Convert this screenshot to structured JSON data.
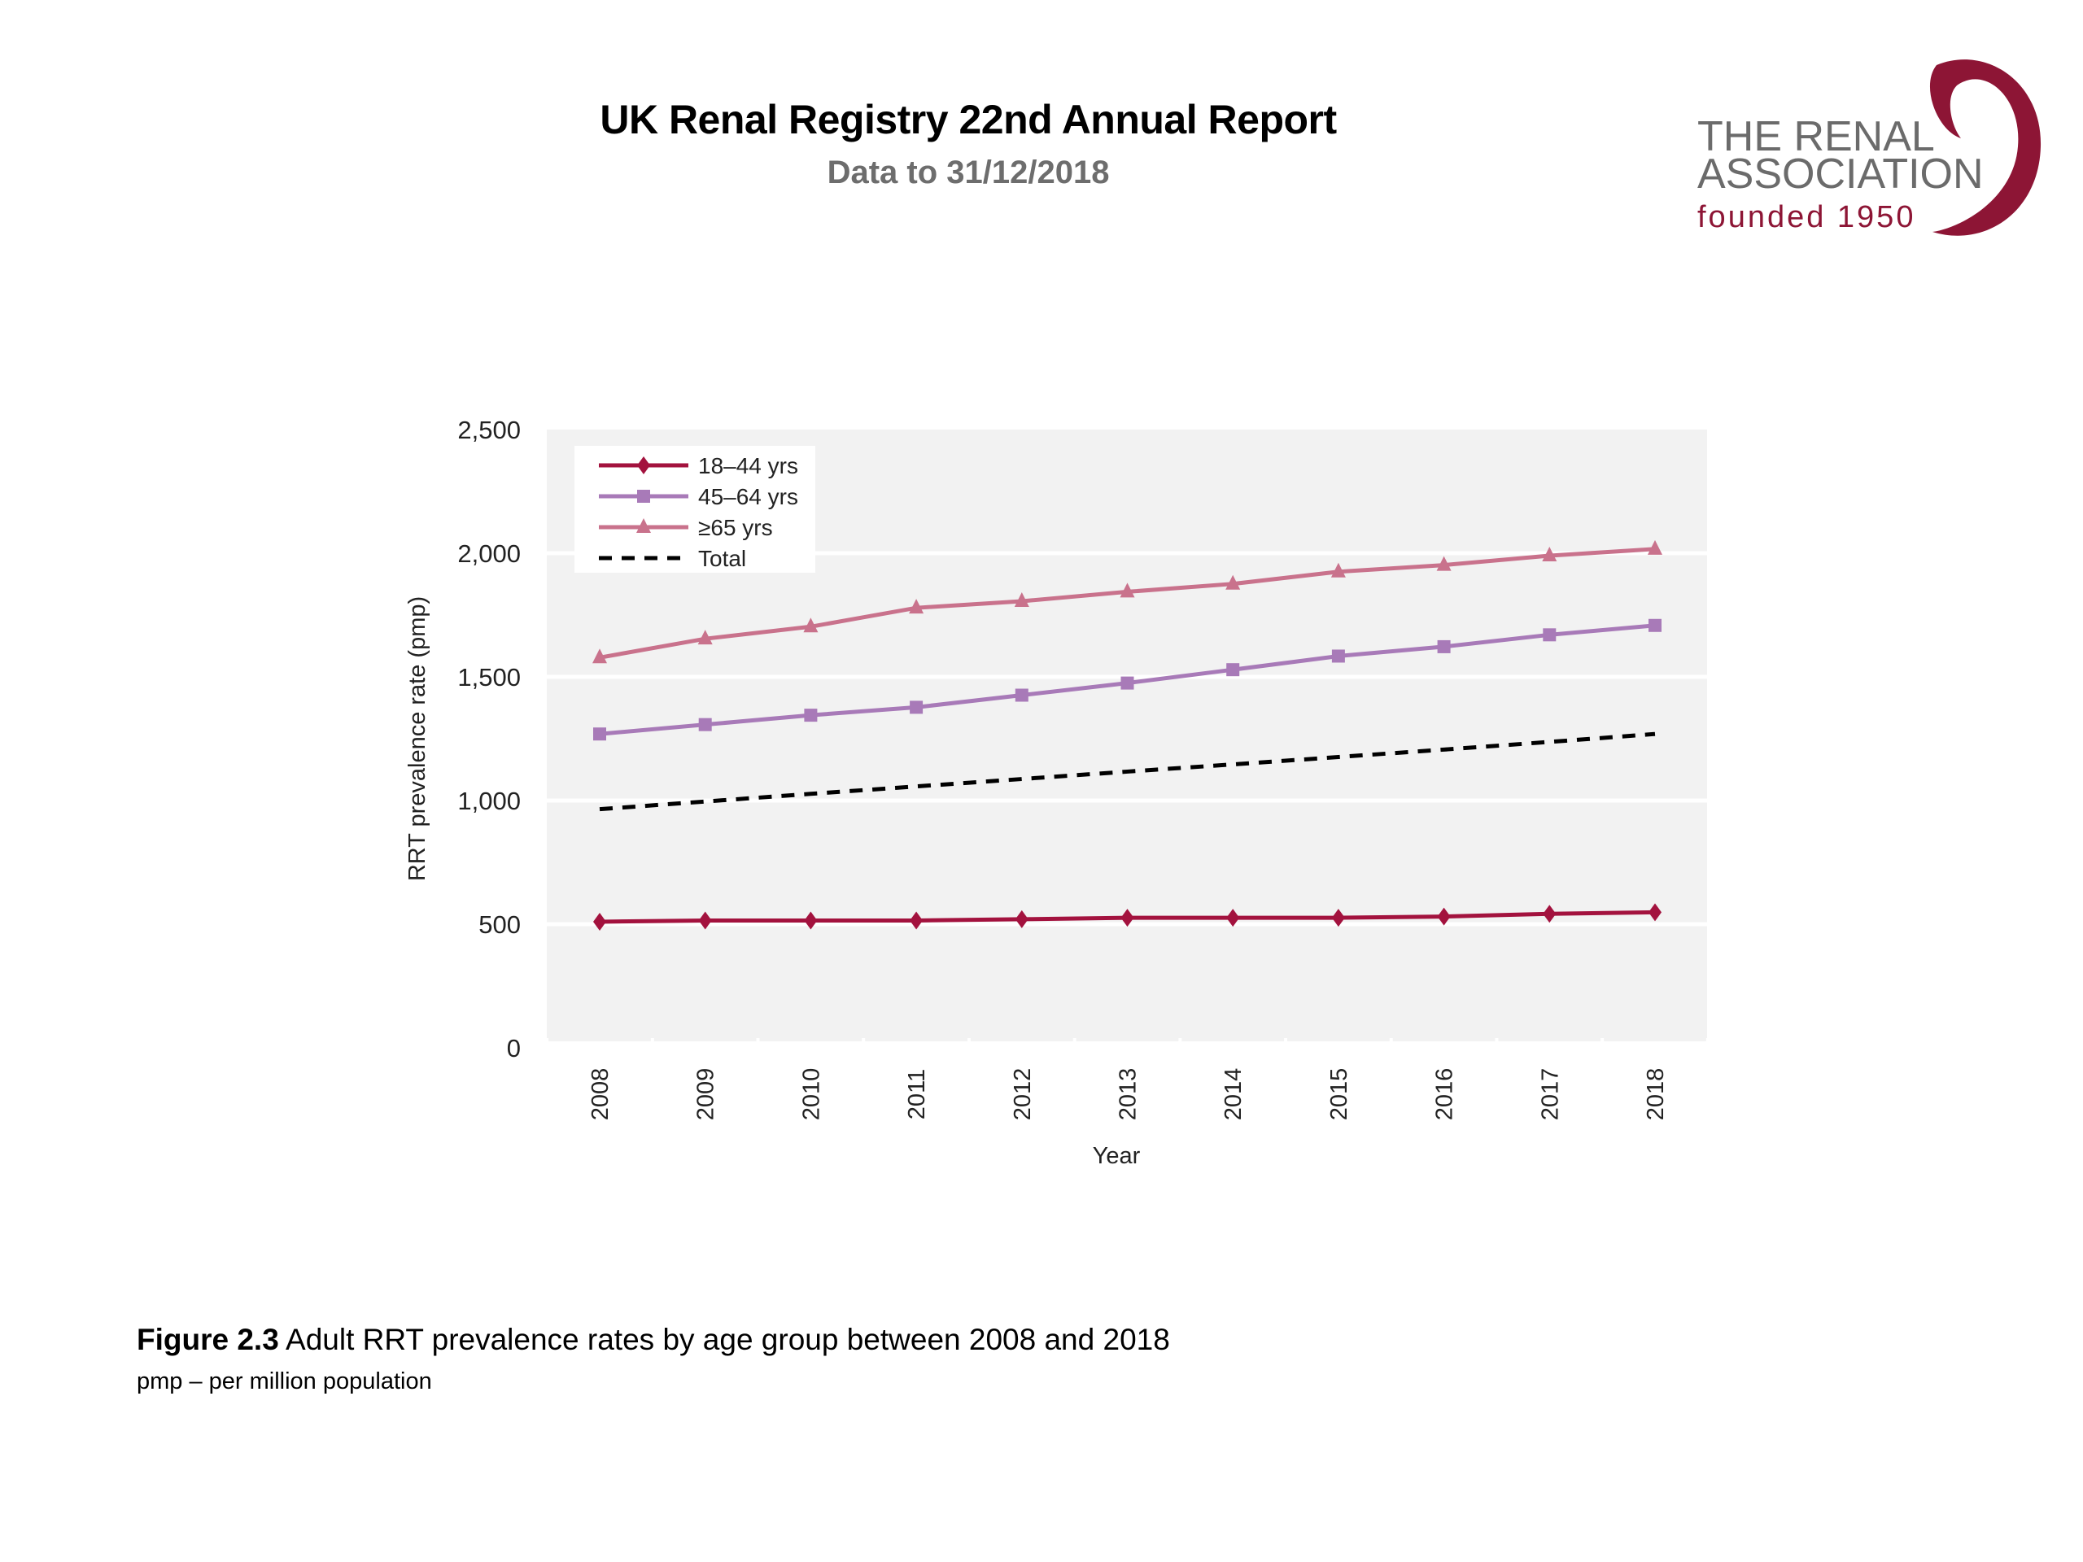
{
  "header": {
    "title": "UK Renal Registry 22nd Annual Report",
    "subtitle": "Data to 31/12/2018"
  },
  "logo": {
    "line1": "THE RENAL",
    "line2": "ASSOCIATION",
    "line3": "founded 1950",
    "brand_color": "#8d1535",
    "text_color": "#6b6b6b"
  },
  "caption": {
    "figure_label": "Figure 2.3",
    "figure_text": " Adult RRT prevalence rates by age group between 2008 and 2018",
    "note": "pmp – per million population"
  },
  "chart_data": {
    "type": "line",
    "title": "",
    "xlabel": "Year",
    "ylabel": "RRT prevalence rate (pmp)",
    "categories": [
      "2008",
      "2009",
      "2010",
      "2011",
      "2012",
      "2013",
      "2014",
      "2015",
      "2016",
      "2017",
      "2018"
    ],
    "ylim": [
      0,
      2500
    ],
    "yticks": [
      0,
      500,
      1000,
      1500,
      2000,
      2500
    ],
    "ytick_labels": [
      "0",
      "500",
      "1,000",
      "1,500",
      "2,000",
      "2,500"
    ],
    "grid": true,
    "legend_position": "top-left",
    "series": [
      {
        "name": "18–44 yrs",
        "color": "#a3123e",
        "marker": "diamond",
        "dash": false,
        "values": [
          510,
          515,
          515,
          515,
          520,
          526,
          526,
          526,
          531,
          542,
          548
        ]
      },
      {
        "name": "45–64 yrs",
        "color": "#a87ab8",
        "marker": "square",
        "dash": false,
        "values": [
          1269,
          1307,
          1345,
          1377,
          1426,
          1475,
          1529,
          1584,
          1622,
          1670,
          1708
        ]
      },
      {
        "name": "≥65 yrs",
        "color": "#c9728c",
        "marker": "triangle",
        "dash": false,
        "values": [
          1578,
          1654,
          1703,
          1779,
          1806,
          1844,
          1876,
          1925,
          1952,
          1990,
          2017
        ]
      },
      {
        "name": "Total",
        "color": "#000000",
        "marker": "none",
        "dash": true,
        "values": [
          965,
          996,
          1027,
          1057,
          1087,
          1117,
          1146,
          1176,
          1206,
          1237,
          1269
        ]
      }
    ]
  }
}
